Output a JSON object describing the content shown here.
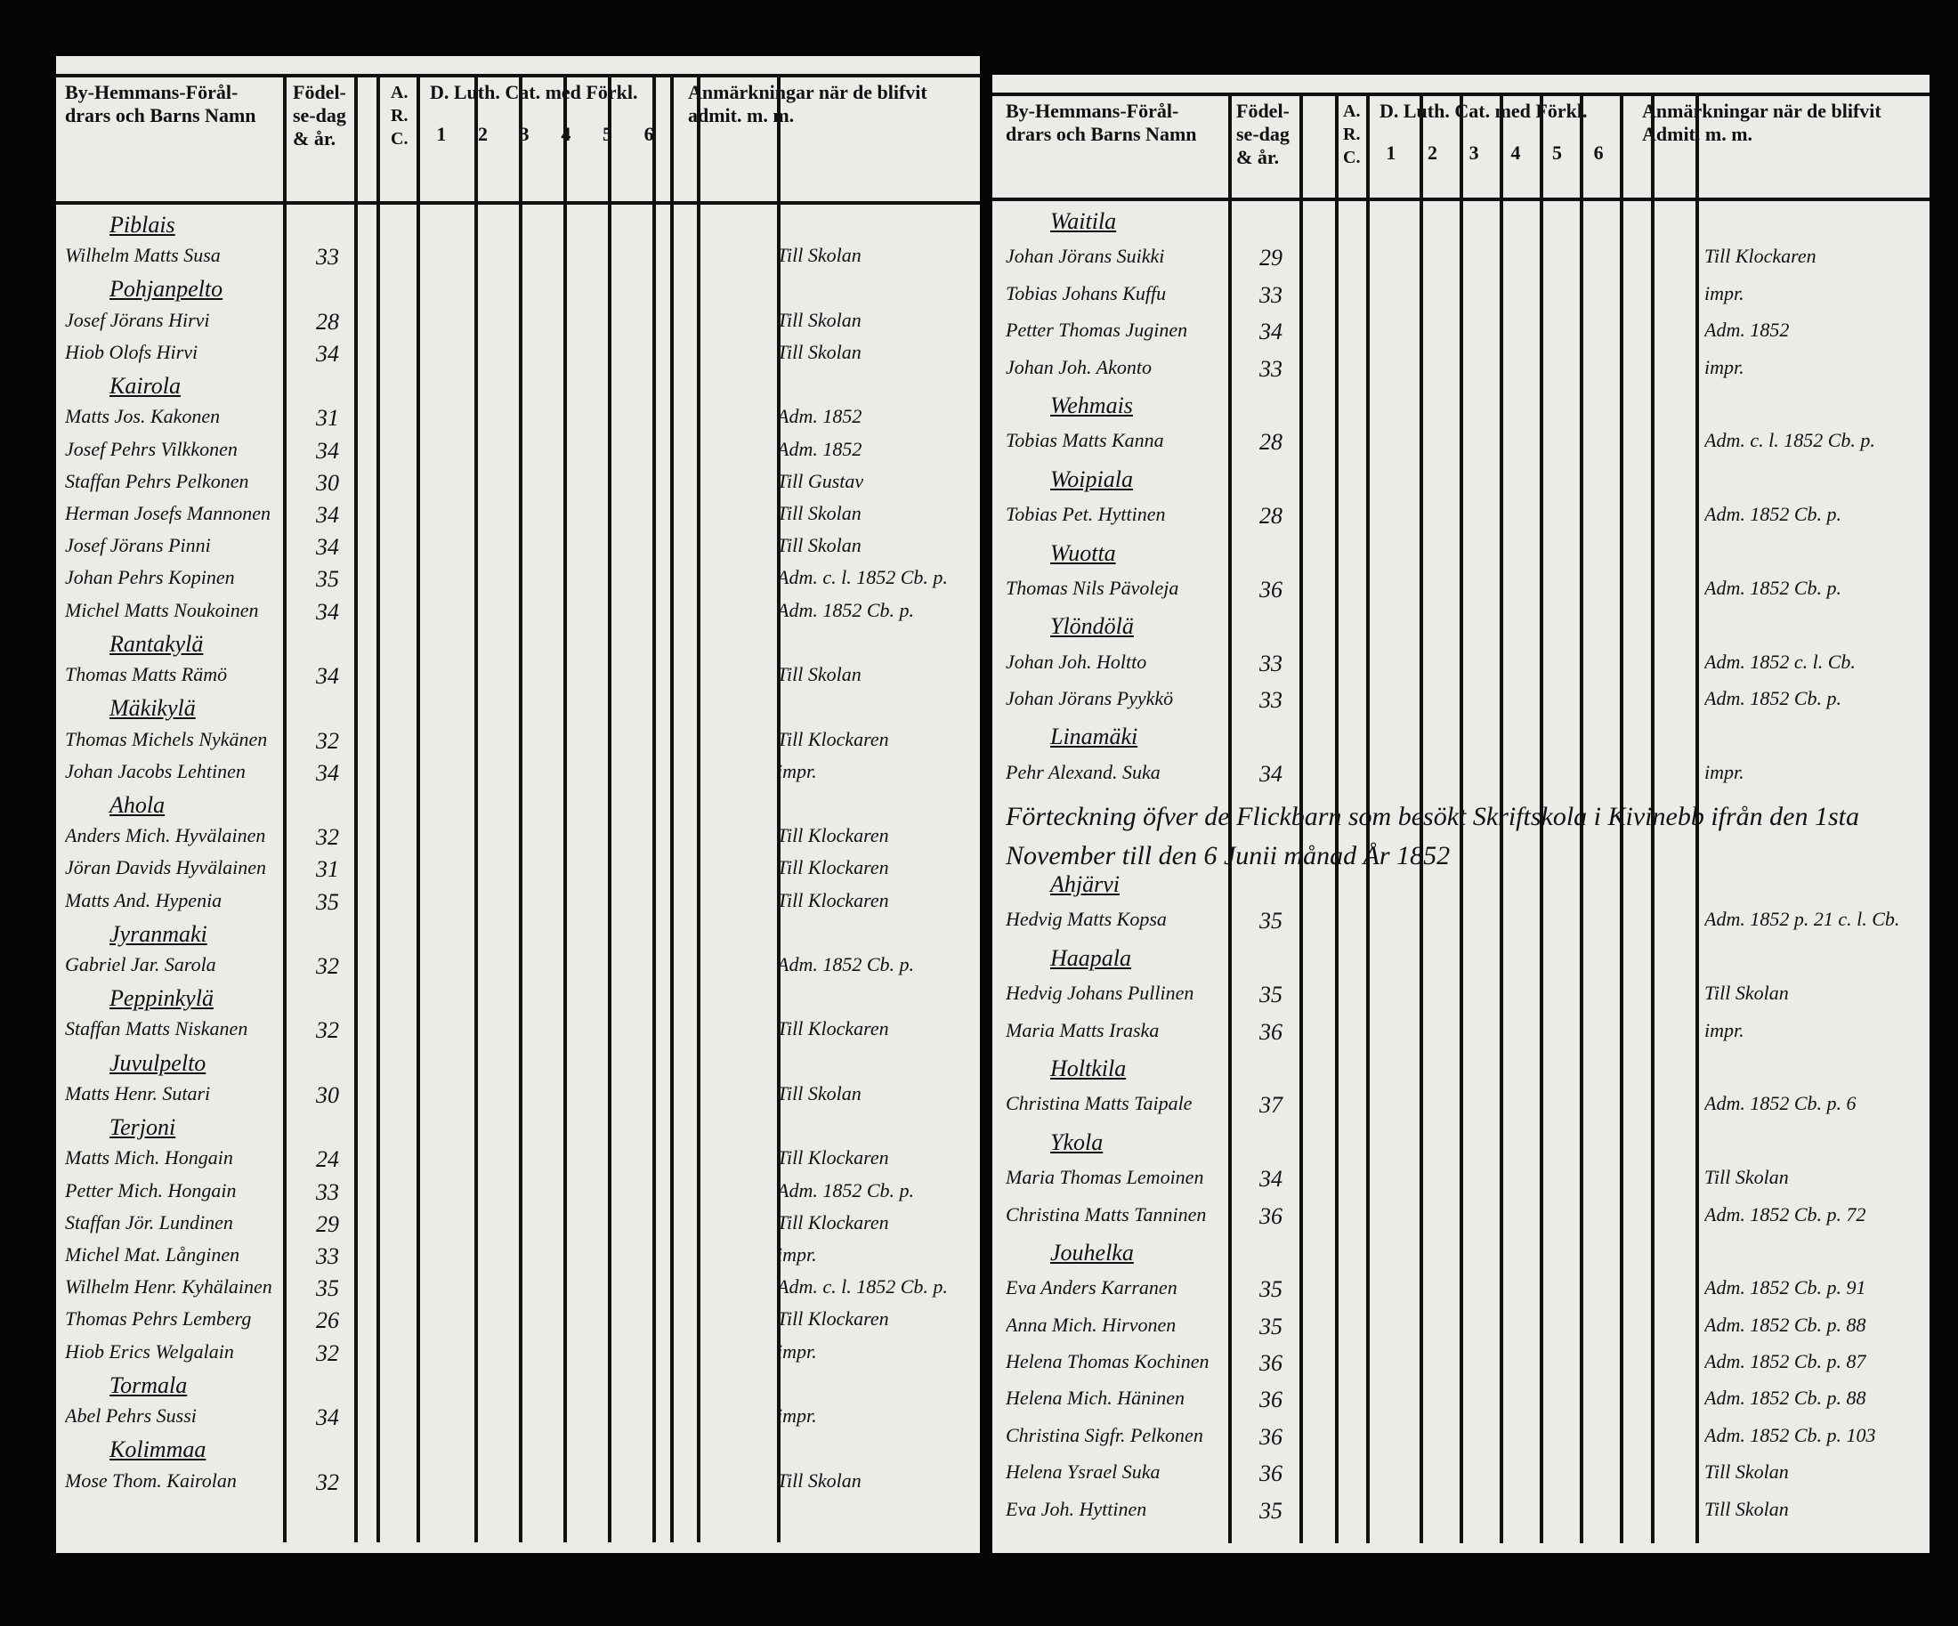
{
  "left_page": {
    "header": {
      "name_col": "By-Hemmans-Förål-drars och Barns Namn",
      "birth_col": "Födel-se-dag & år.",
      "arc_col": "A. R. C.",
      "cat_col": "D. Luth. Cat. med Förkl.",
      "cat_cols": [
        "1",
        "2",
        "3",
        "4",
        "5",
        "6"
      ],
      "notes_col": "Anmärkningar när de blifvit admit. m. m."
    },
    "rows": [
      {
        "village": "Piblais"
      },
      {
        "name": "Wilhelm Matts Susa",
        "year": 33,
        "note": "Till Skolan"
      },
      {
        "village": "Pohjanpelto"
      },
      {
        "name": "Josef Jörans Hirvi",
        "year": 28,
        "note": "Till Skolan"
      },
      {
        "name": "Hiob Olofs Hirvi",
        "year": 34,
        "note": "Till Skolan"
      },
      {
        "village": "Kairola"
      },
      {
        "name": "Matts Jos. Kakonen",
        "year": 31,
        "note": "Adm. 1852"
      },
      {
        "name": "Josef Pehrs Vilkkonen",
        "year": 34,
        "note": "Adm. 1852"
      },
      {
        "name": "Staffan Pehrs Pelkonen",
        "year": 30,
        "note": "Till Gustav"
      },
      {
        "name": "Herman Josefs Mannonen",
        "year": 34,
        "note": "Till Skolan"
      },
      {
        "name": "Josef Jörans Pinni",
        "year": 34,
        "note": "Till Skolan"
      },
      {
        "name": "Johan Pehrs Kopinen",
        "year": 35,
        "note": "Adm. c. l. 1852 Cb. p."
      },
      {
        "name": "Michel Matts Noukoinen",
        "year": 34,
        "note": "Adm. 1852 Cb. p."
      },
      {
        "village": "Rantakylä"
      },
      {
        "name": "Thomas Matts Rämö",
        "year": 34,
        "note": "Till Skolan"
      },
      {
        "village": "Mäkikylä"
      },
      {
        "name": "Thomas Michels Nykänen",
        "year": 32,
        "note": "Till Klockaren"
      },
      {
        "name": "Johan Jacobs Lehtinen",
        "year": 34,
        "note": "impr."
      },
      {
        "village": "Ahola"
      },
      {
        "name": "Anders Mich. Hyvälainen",
        "year": 32,
        "note": "Till Klockaren"
      },
      {
        "name": "Jöran Davids Hyvälainen",
        "year": 31,
        "note": "Till Klockaren"
      },
      {
        "name": "Matts And. Hypenia",
        "year": 35,
        "note": "Till Klockaren"
      },
      {
        "village": "Jyranmaki"
      },
      {
        "name": "Gabriel Jar. Sarola",
        "year": 32,
        "note": "Adm. 1852 Cb. p."
      },
      {
        "village": "Peppinkylä"
      },
      {
        "name": "Staffan Matts Niskanen",
        "year": 32,
        "note": "Till Klockaren"
      },
      {
        "village": "Juvulpelto"
      },
      {
        "name": "Matts Henr. Sutari",
        "year": 30,
        "note": "Till Skolan"
      },
      {
        "village": "Terjoni"
      },
      {
        "name": "Matts Mich. Hongain",
        "year": 24,
        "note": "Till Klockaren"
      },
      {
        "name": "Petter Mich. Hongain",
        "year": 33,
        "note": "Adm. 1852 Cb. p."
      },
      {
        "name": "Staffan Jör. Lundinen",
        "year": 29,
        "note": "Till Klockaren"
      },
      {
        "name": "Michel Mat. Långinen",
        "year": 33,
        "note": "impr."
      },
      {
        "name": "Wilhelm Henr. Kyhälainen",
        "year": 35,
        "note": "Adm. c. l. 1852 Cb. p."
      },
      {
        "name": "Thomas Pehrs Lemberg",
        "year": 26,
        "note": "Till Klockaren"
      },
      {
        "name": "Hiob Erics Welgalain",
        "year": 32,
        "note": "impr."
      },
      {
        "village": "Tormala"
      },
      {
        "name": "Abel Pehrs Sussi",
        "year": 34,
        "note": "impr."
      },
      {
        "village": "Kolimmaa"
      },
      {
        "name": "Mose Thom. Kairolan",
        "year": 32,
        "note": "Till Skolan"
      }
    ]
  },
  "right_page": {
    "header": {
      "name_col": "By-Hemmans-Förål-drars och Barns Namn",
      "birth_col": "Födel-se-dag & år.",
      "arc_col": "A. R. C.",
      "cat_col": "D. Luth. Cat. med Förkl.",
      "cat_cols": [
        "1",
        "2",
        "3",
        "4",
        "5",
        "6"
      ],
      "notes_col": "Anmärkningar när de blifvit Admit. m. m."
    },
    "rows": [
      {
        "village": "Waitila"
      },
      {
        "name": "Johan Jörans Suikki",
        "year": 29,
        "note": "Till Klockaren"
      },
      {
        "name": "Tobias Johans Kuffu",
        "year": 33,
        "note": "impr."
      },
      {
        "name": "Petter Thomas Juginen",
        "year": 34,
        "note": "Adm. 1852"
      },
      {
        "name": "Johan Joh. Akonto",
        "year": 33,
        "note": "impr."
      },
      {
        "village": "Wehmais"
      },
      {
        "name": "Tobias Matts Kanna",
        "year": 28,
        "note": "Adm. c. l. 1852 Cb. p."
      },
      {
        "village": "Woipiala"
      },
      {
        "name": "Tobias Pet. Hyttinen",
        "year": 28,
        "note": "Adm. 1852 Cb. p."
      },
      {
        "village": "Wuotta"
      },
      {
        "name": "Thomas Nils Pävoleja",
        "year": 36,
        "note": "Adm. 1852 Cb. p."
      },
      {
        "village": "Ylöndölä"
      },
      {
        "name": "Johan Joh. Holtto",
        "year": 33,
        "note": "Adm. 1852 c. l. Cb."
      },
      {
        "name": "Johan Jörans Pyykkö",
        "year": 33,
        "note": "Adm. 1852 Cb. p."
      },
      {
        "village": "Linamäki"
      },
      {
        "name": "Pehr Alexand. Suka",
        "year": 34,
        "note": "impr."
      },
      {
        "heading": "Förteckning öfver de Flickbarn som besökt Skriftskola i Kivinebb ifrån den 1sta November till den 6 Junii månad År 1852"
      },
      {
        "village": "Ahjärvi"
      },
      {
        "name": "Hedvig Matts Kopsa",
        "year": 35,
        "note": "Adm. 1852 p. 21 c. l. Cb."
      },
      {
        "village": "Haapala"
      },
      {
        "name": "Hedvig Johans Pullinen",
        "year": 35,
        "note": "Till Skolan"
      },
      {
        "name": "Maria Matts Iraska",
        "year": 36,
        "note": "impr."
      },
      {
        "village": "Holtkila"
      },
      {
        "name": "Christina Matts Taipale",
        "year": 37,
        "note": "Adm. 1852 Cb. p. 6"
      },
      {
        "village": "Ykola"
      },
      {
        "name": "Maria Thomas Lemoinen",
        "year": 34,
        "note": "Till Skolan"
      },
      {
        "name": "Christina Matts Tanninen",
        "year": 36,
        "note": "Adm. 1852 Cb. p. 72"
      },
      {
        "village": "Jouhelka"
      },
      {
        "name": "Eva Anders Karranen",
        "year": 35,
        "note": "Adm. 1852 Cb. p. 91"
      },
      {
        "name": "Anna Mich. Hirvonen",
        "year": 35,
        "note": "Adm. 1852 Cb. p. 88"
      },
      {
        "name": "Helena Thomas Kochinen",
        "year": 36,
        "note": "Adm. 1852 Cb. p. 87"
      },
      {
        "name": "Helena Mich. Häninen",
        "year": 36,
        "note": "Adm. 1852 Cb. p. 88"
      },
      {
        "name": "Christina Sigfr. Pelkonen",
        "year": 36,
        "note": "Adm. 1852 Cb. p. 103"
      },
      {
        "name": "Helena Ysrael Suka",
        "year": 36,
        "note": "Till Skolan"
      },
      {
        "name": "Eva Joh. Hyttinen",
        "year": 35,
        "note": "Till Skolan"
      }
    ]
  }
}
